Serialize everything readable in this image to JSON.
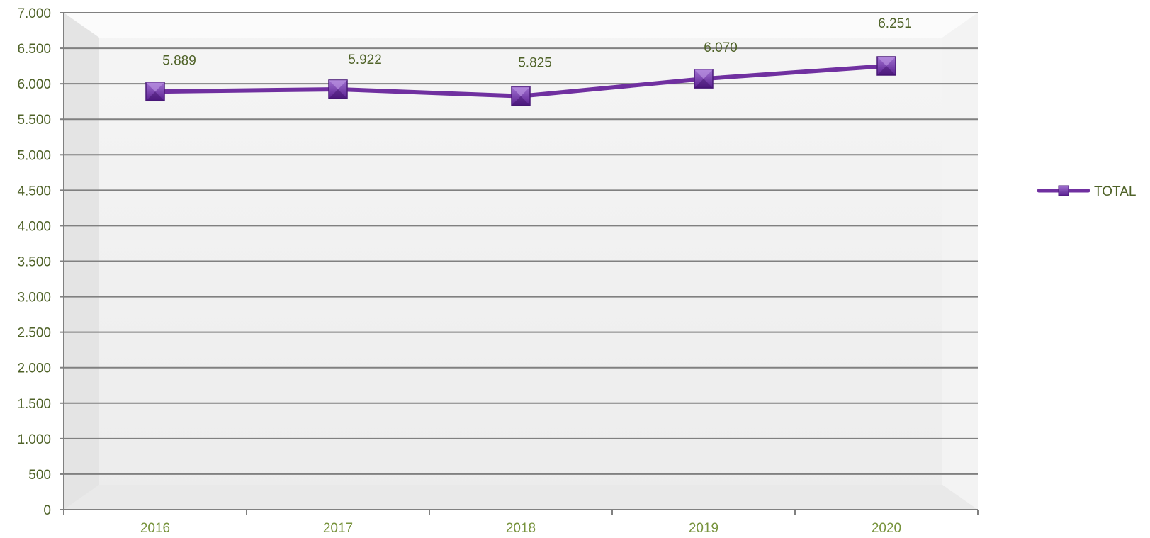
{
  "chart_data": {
    "type": "line",
    "categories": [
      "2016",
      "2017",
      "2018",
      "2019",
      "2020"
    ],
    "series": [
      {
        "name": "TOTAL",
        "values": [
          5889,
          5922,
          5825,
          6070,
          6251
        ],
        "labels": [
          "5.889",
          "5.922",
          "5.825",
          "6.070",
          "6.251"
        ],
        "color": "#7030a0"
      }
    ],
    "ylim": [
      0,
      7000
    ],
    "y_ticks": [
      0,
      500,
      1000,
      1500,
      2000,
      2500,
      3000,
      3500,
      4000,
      4500,
      5000,
      5500,
      6000,
      6500,
      7000
    ],
    "y_tick_labels": [
      "0",
      "500",
      "1.000",
      "1.500",
      "2.000",
      "2.500",
      "3.000",
      "3.500",
      "4.000",
      "4.500",
      "5.000",
      "5.500",
      "6.000",
      "6.500",
      "7.000"
    ],
    "grid": true,
    "legend_position": "right",
    "title": "",
    "xlabel": "",
    "ylabel": ""
  },
  "colors": {
    "line": "#7030a0",
    "gridline": "#808080",
    "axis_text": "#4f6228",
    "category_text": "#77933c"
  }
}
